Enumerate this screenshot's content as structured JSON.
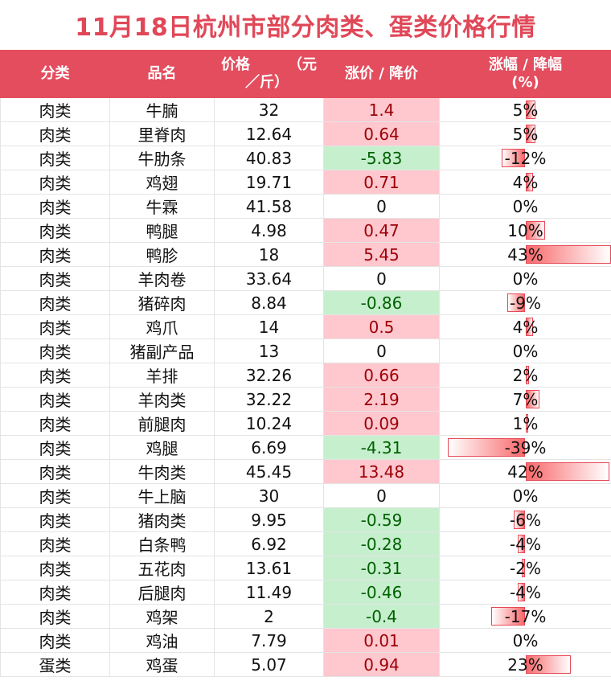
{
  "title": "11月18日杭州市部分肉类、蛋类价格行情",
  "header": {
    "category": "分类",
    "name": "品名",
    "price_line1_a": "价格",
    "price_line1_b": "（元",
    "price_line2": "／斤）",
    "change": "涨价 / 降价",
    "pct_line1": "涨幅 / 降幅",
    "pct_line2": "(%)"
  },
  "colors": {
    "title": "#e04858",
    "header_bg": "#e34d5e",
    "up_bg": "#ffc7ce",
    "up_text": "#9c0006",
    "down_bg": "#c6efce",
    "down_text": "#006100",
    "bar": "#f8696b"
  },
  "chart_data": {
    "type": "table",
    "columns": [
      "分类",
      "品名",
      "价格（元／斤）",
      "涨价 / 降价",
      "涨幅 / 降幅 (%)"
    ],
    "rows": [
      {
        "category": "肉类",
        "name": "牛腩",
        "price": "32",
        "change": "1.4",
        "pct": "5%",
        "pct_value": 5
      },
      {
        "category": "肉类",
        "name": "里脊肉",
        "price": "12.64",
        "change": "0.64",
        "pct": "5%",
        "pct_value": 5
      },
      {
        "category": "肉类",
        "name": "牛肋条",
        "price": "40.83",
        "change": "-5.83",
        "pct": "-12%",
        "pct_value": -12
      },
      {
        "category": "肉类",
        "name": "鸡翅",
        "price": "19.71",
        "change": "0.71",
        "pct": "4%",
        "pct_value": 4
      },
      {
        "category": "肉类",
        "name": "牛霖",
        "price": "41.58",
        "change": "0",
        "pct": "0%",
        "pct_value": 0
      },
      {
        "category": "肉类",
        "name": "鸭腿",
        "price": "4.98",
        "change": "0.47",
        "pct": "10%",
        "pct_value": 10
      },
      {
        "category": "肉类",
        "name": "鸭胗",
        "price": "18",
        "change": "5.45",
        "pct": "43%",
        "pct_value": 43
      },
      {
        "category": "肉类",
        "name": "羊肉卷",
        "price": "33.64",
        "change": "0",
        "pct": "0%",
        "pct_value": 0
      },
      {
        "category": "肉类",
        "name": "猪碎肉",
        "price": "8.84",
        "change": "-0.86",
        "pct": "-9%",
        "pct_value": -9
      },
      {
        "category": "肉类",
        "name": "鸡爪",
        "price": "14",
        "change": "0.5",
        "pct": "4%",
        "pct_value": 4
      },
      {
        "category": "肉类",
        "name": "猪副产品",
        "price": "13",
        "change": "0",
        "pct": "0%",
        "pct_value": 0
      },
      {
        "category": "肉类",
        "name": "羊排",
        "price": "32.26",
        "change": "0.66",
        "pct": "2%",
        "pct_value": 2
      },
      {
        "category": "肉类",
        "name": "羊肉类",
        "price": "32.22",
        "change": "2.19",
        "pct": "7%",
        "pct_value": 7
      },
      {
        "category": "肉类",
        "name": "前腿肉",
        "price": "10.24",
        "change": "0.09",
        "pct": "1%",
        "pct_value": 1
      },
      {
        "category": "肉类",
        "name": "鸡腿",
        "price": "6.69",
        "change": "-4.31",
        "pct": "-39%",
        "pct_value": -39
      },
      {
        "category": "肉类",
        "name": "牛肉类",
        "price": "45.45",
        "change": "13.48",
        "pct": "42%",
        "pct_value": 42
      },
      {
        "category": "肉类",
        "name": "牛上脑",
        "price": "30",
        "change": "0",
        "pct": "0%",
        "pct_value": 0
      },
      {
        "category": "肉类",
        "name": "猪肉类",
        "price": "9.95",
        "change": "-0.59",
        "pct": "-6%",
        "pct_value": -6
      },
      {
        "category": "肉类",
        "name": "白条鸭",
        "price": "6.92",
        "change": "-0.28",
        "pct": "-4%",
        "pct_value": -4
      },
      {
        "category": "肉类",
        "name": "五花肉",
        "price": "13.61",
        "change": "-0.31",
        "pct": "-2%",
        "pct_value": -2
      },
      {
        "category": "肉类",
        "name": "后腿肉",
        "price": "11.49",
        "change": "-0.46",
        "pct": "-4%",
        "pct_value": -4
      },
      {
        "category": "肉类",
        "name": "鸡架",
        "price": "2",
        "change": "-0.4",
        "pct": "-17%",
        "pct_value": -17
      },
      {
        "category": "肉类",
        "name": "鸡油",
        "price": "7.79",
        "change": "0.01",
        "pct": "0%",
        "pct_value": 0
      },
      {
        "category": "蛋类",
        "name": "鸡蛋",
        "price": "5.07",
        "change": "0.94",
        "pct": "23%",
        "pct_value": 23
      }
    ],
    "pct_axis_range": [
      -43,
      43
    ]
  }
}
